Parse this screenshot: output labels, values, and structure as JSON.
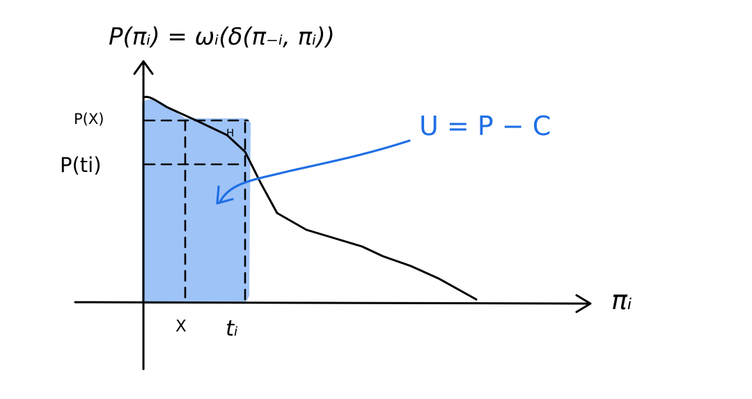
{
  "colors": {
    "background": "#ffffff",
    "shade": "#9ec3f7",
    "ink": "#000000",
    "accent": "#1f6fe5"
  },
  "labels": {
    "title": "P(πᵢ) = ωᵢ(δ(π₋ᵢ, πᵢ))",
    "y_px": "P(X)",
    "y_pti": "P(ti)",
    "x_x": "X",
    "x_ti": "tᵢ",
    "h": "H",
    "x_axis": "πᵢ",
    "utility": "U = P − C"
  }
}
